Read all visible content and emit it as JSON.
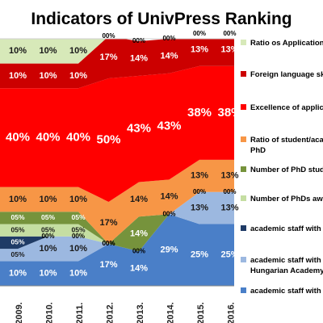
{
  "chart_data": {
    "type": "area",
    "stacked": true,
    "title": "Indicators of UnivPress Ranking",
    "categories": [
      "2009.",
      "2010.",
      "2011.",
      "2012.",
      "2013.",
      "2014.",
      "2015.",
      "2016."
    ],
    "ylim": [
      0,
      100
    ],
    "legend_position": "right",
    "series": [
      {
        "name": "academic staff with P",
        "color": "#4a7fc8",
        "values": [
          10,
          10,
          10,
          17,
          14,
          29,
          25,
          25
        ],
        "labels": [
          "10%",
          "10%",
          "10%",
          "17%",
          "14%",
          "29%",
          "25%",
          "25%"
        ]
      },
      {
        "name": "academic staff with d Hungarian Academy o",
        "color": "#9cb8e0",
        "values": [
          5,
          10,
          10,
          0,
          0,
          0,
          13,
          13
        ],
        "labels": [
          "05%",
          "10%",
          "10%",
          "00%",
          "00%",
          "",
          "13%",
          "13%"
        ]
      },
      {
        "name": "academic staff with \"",
        "color": "#1f3b66",
        "values": [
          5,
          0,
          0,
          0,
          0,
          0,
          0,
          0
        ],
        "labels": [
          "05%",
          "00%",
          "00%",
          "",
          "",
          "",
          "",
          ""
        ]
      },
      {
        "name": "Number of PhDs awa",
        "color": "#c5dea2",
        "values": [
          5,
          5,
          5,
          0,
          0,
          0,
          0,
          0
        ],
        "labels": [
          "05%",
          "05%",
          "05%",
          "",
          "",
          "",
          "",
          ""
        ]
      },
      {
        "name": "Number of PhD stude",
        "color": "#76933c",
        "values": [
          5,
          5,
          5,
          0,
          14,
          0,
          0,
          0
        ],
        "labels": [
          "05%",
          "05%",
          "05%",
          "00%",
          "14%",
          "00%",
          "00%",
          "00%"
        ]
      },
      {
        "name": "Ratio of student/aca PhD",
        "color": "#f79646",
        "values": [
          10,
          10,
          10,
          17,
          14,
          14,
          13,
          13
        ],
        "labels": [
          "10%",
          "10%",
          "10%",
          "17%",
          "14%",
          "14%",
          "13%",
          "13%"
        ]
      },
      {
        "name": "Excellence of applican",
        "color": "#ff0000",
        "values": [
          40,
          40,
          40,
          50,
          43,
          43,
          38,
          38
        ],
        "labels": [
          "40%",
          "40%",
          "40%",
          "50%",
          "43%",
          "43%",
          "38%",
          "38%"
        ]
      },
      {
        "name": "Foreign language skil",
        "color": "#cc0000",
        "values": [
          10,
          10,
          10,
          17,
          14,
          14,
          13,
          13
        ],
        "labels": [
          "10%",
          "10%",
          "10%",
          "17%",
          "14%",
          "14%",
          "13%",
          "13%"
        ]
      },
      {
        "name": "Ratio os Application's",
        "color": "#d7e9b9",
        "values": [
          10,
          10,
          10,
          0,
          0,
          0,
          0,
          0
        ],
        "labels": [
          "10%",
          "10%",
          "10%",
          "00%",
          "00%",
          "00%",
          "00%",
          "00%"
        ]
      }
    ]
  }
}
